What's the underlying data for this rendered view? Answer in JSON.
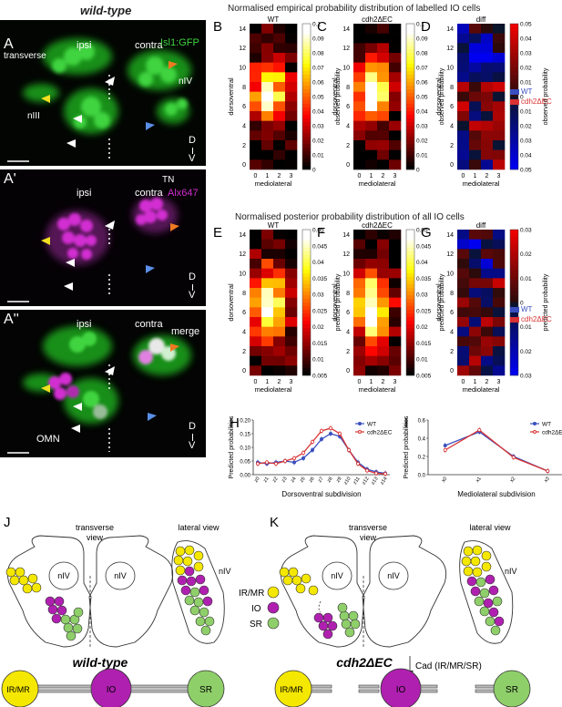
{
  "header": {
    "genotype_title": "wild-type"
  },
  "left_panels": [
    {
      "letter": "A",
      "labels": {
        "transverse": "transverse",
        "ipsi": "ipsi",
        "contra": "contra",
        "channel": "Isl1:GFP",
        "nIV": "nIV",
        "nIII": "nIII",
        "d": "D",
        "v": "V"
      }
    },
    {
      "letter": "A'",
      "labels": {
        "ipsi": "ipsi",
        "contra": "contra",
        "tn": "TN",
        "channel": "Alx647",
        "d": "D",
        "v": "V"
      }
    },
    {
      "letter": "A''",
      "labels": {
        "ipsi": "ipsi",
        "contra": "contra",
        "channel": "merge",
        "omn": "OMN",
        "d": "D",
        "v": "V"
      }
    }
  ],
  "section_titles": {
    "empirical": "Normalised empirical probability distribution of labelled IO cells",
    "posterior": "Normalised posterior probability distribution of all IO cells"
  },
  "heatmaps": {
    "B": {
      "letter": "B",
      "title": "WT",
      "cbar_label": "observed probability",
      "cbar_ticks": [
        "0.1",
        "0.09",
        "0.08",
        "0.07",
        "0.06",
        "0.05",
        "0.04",
        "0.03",
        "0.02",
        "0.01",
        "0"
      ]
    },
    "C": {
      "letter": "C",
      "title": "cdh2ΔEC",
      "cbar_label": "observed probability",
      "cbar_ticks": [
        "0.1",
        "0.09",
        "0.08",
        "0.07",
        "0.06",
        "0.05",
        "0.04",
        "0.03",
        "0.02",
        "0.01",
        "0"
      ]
    },
    "D": {
      "letter": "D",
      "title": "diff",
      "cbar_label": "observed probability",
      "cbar_ticks": [
        "0.05",
        "0.04",
        "0.03",
        "0.02",
        "0.01",
        "0",
        "0.01",
        "0.02",
        "0.03",
        "0.04",
        "0.05"
      ]
    },
    "E": {
      "letter": "E",
      "title": "WT",
      "cbar_label": "predicted probability",
      "cbar_ticks": [
        "0.05",
        "0.045",
        "0.04",
        "0.035",
        "0.03",
        "0.025",
        "0.02",
        "0.015",
        "0.01",
        "0.005"
      ]
    },
    "F": {
      "letter": "F",
      "title": "cdh2ΔEC",
      "cbar_label": "predicted probability",
      "cbar_ticks": [
        "0.05",
        "0.045",
        "0.04",
        "0.035",
        "0.03",
        "0.025",
        "0.02",
        "0.015",
        "0.01",
        "0.005"
      ]
    },
    "G": {
      "letter": "G",
      "title": "diff",
      "cbar_label": "predicted probability",
      "cbar_ticks": [
        "0.03",
        "0.02",
        "0.01",
        "0",
        "0.01",
        "0.02",
        "0.03"
      ]
    },
    "axes": {
      "ylabel": "dorsoventral",
      "xlabel": "mediolateral",
      "yticks": [
        "14",
        "12",
        "10",
        "8",
        "6",
        "4",
        "2",
        "0"
      ],
      "xticks": [
        "0",
        "1",
        "2",
        "3"
      ]
    },
    "legend": {
      "wt": "WT",
      "mut": "cdh2ΔEC",
      "wt_color": "#3a4fbf",
      "mut_color": "#d93232"
    }
  },
  "chart_data": [
    {
      "type": "line",
      "panel": "H",
      "xlabel": "Dorsoventral subdivision",
      "ylabel": "Predicted probabilities",
      "x": [
        "z0",
        "z1",
        "z2",
        "z3",
        "z4",
        "z5",
        "z6",
        "z7",
        "z8",
        "z9",
        "z10",
        "z11",
        "z12",
        "z13",
        "z14"
      ],
      "ylim": [
        0,
        0.2
      ],
      "yticks": [
        "0.20",
        "0.15",
        "0.10",
        "0.05",
        "0.00"
      ],
      "series": [
        {
          "name": "WT",
          "color": "#3a4fbf",
          "values": [
            0.045,
            0.04,
            0.045,
            0.05,
            0.045,
            0.06,
            0.09,
            0.13,
            0.15,
            0.14,
            0.09,
            0.045,
            0.02,
            0.01,
            0.005
          ]
        },
        {
          "name": "cdh2ΔEC",
          "color": "#d93232",
          "values": [
            0.04,
            0.045,
            0.04,
            0.05,
            0.06,
            0.08,
            0.12,
            0.16,
            0.17,
            0.15,
            0.09,
            0.04,
            0.015,
            0.005,
            0.003
          ]
        }
      ]
    },
    {
      "type": "line",
      "panel": "I",
      "xlabel": "Mediolateral subdivision",
      "ylabel": "Predicted probabilities",
      "x": [
        "x0",
        "x1",
        "x2",
        "x3"
      ],
      "ylim": [
        0,
        0.6
      ],
      "yticks": [
        "0.6",
        "0.4",
        "0.2",
        "0.0"
      ],
      "series": [
        {
          "name": "WT",
          "color": "#3a4fbf",
          "values": [
            0.32,
            0.47,
            0.2,
            0.04
          ]
        },
        {
          "name": "cdh2ΔEC",
          "color": "#d93232",
          "values": [
            0.27,
            0.49,
            0.19,
            0.04
          ]
        }
      ]
    }
  ],
  "schematics": {
    "J": {
      "letter": "J",
      "transverse": "transverse\nview",
      "lateral": "lateral view",
      "nIV_left": "nIV",
      "nIV_right": "nIV",
      "nIV_lateral": "nIV",
      "genotype": "wild-type",
      "cells": [
        "IR/MR",
        "IO",
        "SR"
      ]
    },
    "K": {
      "letter": "K",
      "transverse": "transverse\nview",
      "lateral": "lateral view",
      "nIV_left": "nIV",
      "nIV_right": "nIV",
      "nIV_lateral": "nIV",
      "genotype": "cdh2ΔEC",
      "annotation": "Cad (IR/MR/SR)",
      "cells": [
        "IR/MR",
        "IO",
        "SR"
      ]
    },
    "legend": [
      {
        "label": "IR/MR",
        "color": "#f5e800"
      },
      {
        "label": "IO",
        "color": "#b020b0"
      },
      {
        "label": "SR",
        "color": "#8fcf6a"
      }
    ]
  }
}
